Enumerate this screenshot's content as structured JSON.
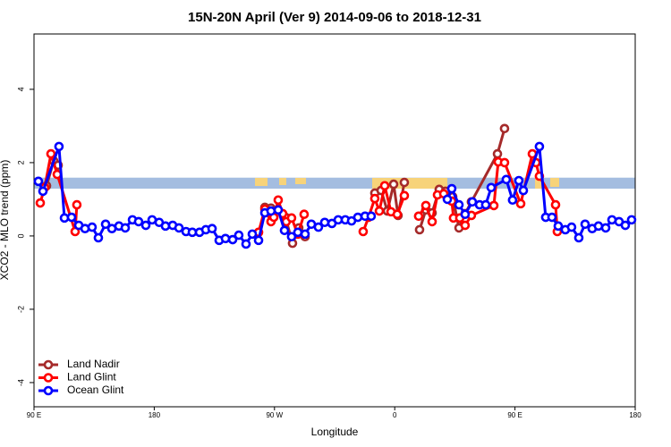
{
  "chart_data": {
    "type": "line",
    "title": "15N-20N April (Ver 9)   2014-09-06 to 2018-12-31",
    "x_label": "Longitude",
    "y_label": "XCO2 - MLO trend (ppm)",
    "xlim": [
      90,
      540
    ],
    "xticks": [
      {
        "value": 90,
        "label": "90 E"
      },
      {
        "value": 180,
        "label": "180"
      },
      {
        "value": 270,
        "label": "90 W"
      },
      {
        "value": 360,
        "label": "0"
      },
      {
        "value": 450,
        "label": "90 E"
      },
      {
        "value": 540,
        "label": "180"
      }
    ],
    "ylim": [
      -4.66,
      5.51
    ],
    "yticks": [
      -4,
      -2,
      0,
      2,
      4
    ],
    "band": {
      "ylim": [
        1.29,
        1.59
      ],
      "color": "#a4bde0"
    },
    "legend": "bottom-left",
    "series": [
      {
        "name": "Land Nadir",
        "color": "#a52a2a",
        "x": [
          99.4,
          104.7,
          108.1,
          null,
          262.8,
          267.4,
          272.8,
          278.2,
          283.5,
          288.2,
          292.9,
          null,
          345.1,
          349.8,
          354.5,
          359.2,
          362.5,
          367.2,
          null,
          378.6,
          383.3,
          388.0,
          393.3,
          398.0,
          403.4,
          408.1,
          412.7,
          417.4,
          436.9,
          442.2
        ],
        "values": [
          1.37,
          2.05,
          1.93,
          null,
          0.78,
          0.76,
          0.71,
          0.51,
          -0.2,
          0.22,
          -0.02,
          null,
          1.17,
          1.24,
          0.68,
          1.41,
          0.56,
          1.46,
          null,
          0.17,
          0.71,
          0.63,
          1.27,
          1.22,
          1.07,
          0.22,
          0.61,
          0.93,
          2.24,
          2.93
        ]
      },
      {
        "name": "Land Glint",
        "color": "#ff0000",
        "x": [
          94.7,
          98.0,
          102.7,
          107.4,
          120.8,
          122.1,
          null,
          258.1,
          262.8,
          267.4,
          269.5,
          272.8,
          276.1,
          278.8,
          282.8,
          287.5,
          292.2,
          null,
          336.4,
          340.4,
          345.1,
          348.5,
          352.5,
          357.2,
          361.9,
          367.2,
          null,
          377.9,
          383.3,
          388.0,
          392.0,
          396.7,
          402.7,
          404.0,
          408.7,
          412.7,
          417.4,
          434.2,
          437.5,
          442.2,
          454.3,
          463.0,
          465.7,
          468.3,
          480.4,
          481.7
        ],
        "values": [
          0.9,
          1.32,
          2.24,
          1.68,
          0.12,
          0.85,
          null,
          0.1,
          0.73,
          0.39,
          0.51,
          0.98,
          0.61,
          0.39,
          0.49,
          0.05,
          0.59,
          null,
          0.12,
          0.51,
          1.02,
          0.68,
          1.37,
          0.66,
          0.59,
          1.1,
          null,
          0.54,
          0.83,
          0.39,
          1.12,
          1.15,
          0.95,
          0.49,
          0.49,
          0.29,
          0.56,
          0.83,
          2.02,
          2.0,
          0.88,
          2.24,
          2.0,
          1.63,
          0.85,
          0.12
        ]
      },
      {
        "name": "Ocean Glint",
        "color": "#0000ff",
        "x": [
          93.3,
          96.7,
          108.7,
          112.8,
          118.1,
          123.5,
          128.2,
          133.5,
          138.2,
          143.6,
          148.3,
          153.6,
          158.3,
          163.7,
          168.3,
          173.7,
          178.4,
          183.7,
          188.4,
          193.8,
          198.5,
          203.8,
          208.5,
          213.9,
          218.6,
          223.3,
          228.6,
          233.3,
          238.7,
          243.3,
          248.7,
          253.4,
          258.1,
          262.8,
          267.4,
          272.8,
          277.5,
          282.8,
          287.5,
          292.9,
          297.6,
          302.9,
          307.6,
          313.0,
          317.7,
          323.0,
          327.7,
          332.4,
          337.8,
          342.4,
          null,
          399.4,
          402.7,
          408.1,
          412.7,
          418.1,
          423.5,
          428.1,
          432.2,
          443.5,
          448.2,
          452.9,
          456.3,
          468.3,
          473.0,
          477.7,
          482.4,
          487.7,
          492.4,
          497.8,
          502.5,
          507.8,
          512.5,
          517.9,
          522.6,
          527.9,
          532.6,
          537.3
        ],
        "values": [
          1.49,
          1.22,
          2.44,
          0.49,
          0.51,
          0.29,
          0.2,
          0.24,
          -0.05,
          0.32,
          0.2,
          0.27,
          0.22,
          0.44,
          0.39,
          0.29,
          0.44,
          0.37,
          0.27,
          0.29,
          0.22,
          0.12,
          0.1,
          0.1,
          0.17,
          0.2,
          -0.12,
          -0.07,
          -0.1,
          0.02,
          -0.22,
          0.05,
          -0.12,
          0.63,
          0.68,
          0.71,
          0.15,
          -0.02,
          0.1,
          0.05,
          0.32,
          0.24,
          0.37,
          0.34,
          0.44,
          0.44,
          0.41,
          0.51,
          0.54,
          0.54,
          null,
          1.0,
          1.29,
          0.85,
          0.59,
          0.93,
          0.85,
          0.85,
          1.32,
          1.54,
          0.98,
          1.51,
          1.24,
          2.44,
          0.51,
          0.51,
          0.27,
          0.17,
          0.24,
          -0.05,
          0.32,
          0.2,
          0.27,
          0.22,
          0.44,
          0.39,
          0.29,
          0.44
        ]
      }
    ]
  }
}
